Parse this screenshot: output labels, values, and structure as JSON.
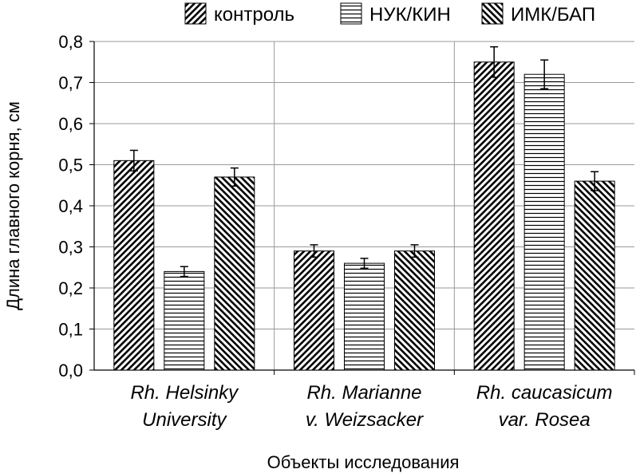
{
  "chart_data": {
    "type": "bar",
    "title": "",
    "xlabel": "Объекты исследования",
    "ylabel": "Длина главного корня, см",
    "ylim": [
      0,
      0.8
    ],
    "yticks": [
      "0,0",
      "0,1",
      "0,2",
      "0,3",
      "0,4",
      "0,5",
      "0,6",
      "0,7",
      "0,8"
    ],
    "grid": true,
    "legend_position": "top-right",
    "categories": [
      [
        "Rh. Helsinky",
        "University"
      ],
      [
        "Rh. Marianne",
        "v. Weizsacker"
      ],
      [
        "Rh. caucasicum",
        "var. Rosea"
      ]
    ],
    "series": [
      {
        "name": "контроль",
        "pattern": "diagonal-forward",
        "values": [
          0.51,
          0.29,
          0.75
        ],
        "errors": [
          0.025,
          0.015,
          0.037
        ]
      },
      {
        "name": "НУК/КИН",
        "pattern": "horizontal",
        "values": [
          0.24,
          0.26,
          0.72
        ],
        "errors": [
          0.012,
          0.012,
          0.035
        ]
      },
      {
        "name": "ИМК/БАП",
        "pattern": "diagonal-backward",
        "values": [
          0.47,
          0.29,
          0.46
        ],
        "errors": [
          0.022,
          0.015,
          0.023
        ]
      }
    ],
    "colors": {
      "bar_stroke": "#000000",
      "grid": "#999999",
      "background": "#ffffff"
    }
  }
}
